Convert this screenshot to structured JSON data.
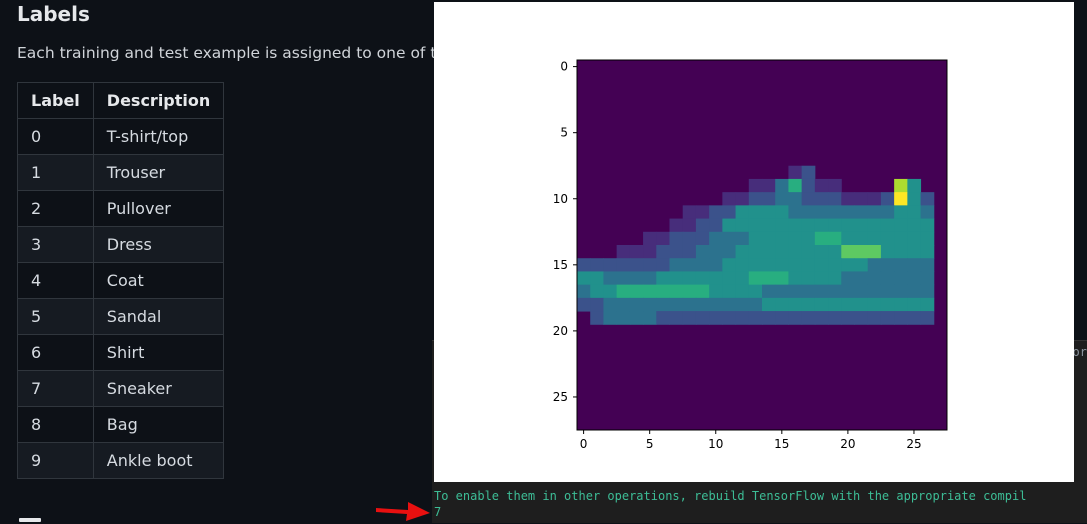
{
  "document": {
    "heading": "Labels",
    "intro": "Each training and test example is assigned to one of the",
    "table": {
      "headers": [
        "Label",
        "Description"
      ],
      "rows": [
        [
          "0",
          "T-shirt/top"
        ],
        [
          "1",
          "Trouser"
        ],
        [
          "2",
          "Pullover"
        ],
        [
          "3",
          "Dress"
        ],
        [
          "4",
          "Coat"
        ],
        [
          "5",
          "Sandal"
        ],
        [
          "6",
          "Shirt"
        ],
        [
          "7",
          "Sneaker"
        ],
        [
          "8",
          "Bag"
        ],
        [
          "9",
          "Ankle boot"
        ]
      ]
    }
  },
  "terminal": {
    "line1": "To enable them in other operations, rebuild TensorFlow with the appropriate compil",
    "line2": "7",
    "edge_text": "or"
  },
  "plot": {
    "x_ticks": [
      "0",
      "5",
      "10",
      "15",
      "20",
      "25"
    ],
    "y_ticks": [
      "0",
      "5",
      "10",
      "15",
      "20",
      "25"
    ],
    "colormap": "viridis",
    "image_size": [
      28,
      28
    ]
  },
  "colors": {
    "page_bg": "#0d1117",
    "alt_row": "#161b22",
    "terminal_text": "#3dbd96",
    "arrow": "#e81010",
    "plot_bg": "#440154"
  }
}
